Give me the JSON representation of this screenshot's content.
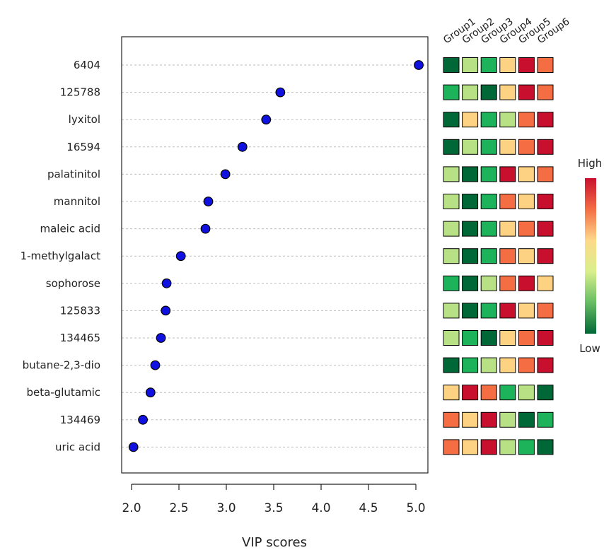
{
  "chart_data": {
    "type": "scatter",
    "xlabel": "VIP scores",
    "xlim": [
      1.9,
      5.1
    ],
    "xticks": [
      2.0,
      2.5,
      3.0,
      3.5,
      4.0,
      4.5,
      5.0
    ],
    "xtick_labels": [
      "2.0",
      "2.5",
      "3.0",
      "3.5",
      "4.0",
      "4.5",
      "5.0"
    ],
    "features": [
      "6404",
      "125788",
      "lyxitol",
      "16594",
      "palatinitol",
      "mannitol",
      "maleic acid",
      "1-methylgalact",
      "sophorose",
      "125833",
      "134465",
      "butane-2,3-dio",
      "beta-glutamic",
      "134469",
      "uric acid"
    ],
    "vip_scores": [
      5.03,
      3.57,
      3.42,
      3.17,
      2.99,
      2.81,
      2.78,
      2.52,
      2.37,
      2.36,
      2.31,
      2.25,
      2.2,
      2.12,
      2.02
    ],
    "point_color": "#1010e0",
    "groups": [
      "Group1",
      "Group2",
      "Group3",
      "Group4",
      "Group5",
      "Group6"
    ],
    "heatmap": [
      [
        1,
        3,
        2,
        4,
        6,
        5
      ],
      [
        2,
        3,
        1,
        4,
        6,
        5
      ],
      [
        1,
        4,
        2,
        3,
        5,
        6
      ],
      [
        1,
        3,
        2,
        4,
        5,
        6
      ],
      [
        3,
        1,
        2,
        6,
        4,
        5
      ],
      [
        3,
        1,
        2,
        5,
        4,
        6
      ],
      [
        3,
        1,
        2,
        4,
        5,
        6
      ],
      [
        3,
        1,
        2,
        5,
        4,
        6
      ],
      [
        2,
        1,
        3,
        5,
        6,
        4
      ],
      [
        3,
        1,
        2,
        6,
        4,
        5
      ],
      [
        3,
        2,
        1,
        4,
        5,
        6
      ],
      [
        1,
        2,
        3,
        4,
        5,
        6
      ],
      [
        4,
        6,
        5,
        2,
        3,
        1
      ],
      [
        5,
        4,
        6,
        3,
        1,
        2
      ],
      [
        5,
        4,
        6,
        3,
        2,
        1
      ]
    ],
    "rank_colors": [
      "#006837",
      "#1db35b",
      "#b8e186",
      "#fed283",
      "#f46d43",
      "#c8102e"
    ],
    "legend": {
      "high_label": "High",
      "low_label": "Low",
      "gradient": [
        "#c8102e",
        "#f46d43",
        "#fdd98a",
        "#d9ef8b",
        "#66bd63",
        "#006837"
      ]
    },
    "grid": true
  }
}
